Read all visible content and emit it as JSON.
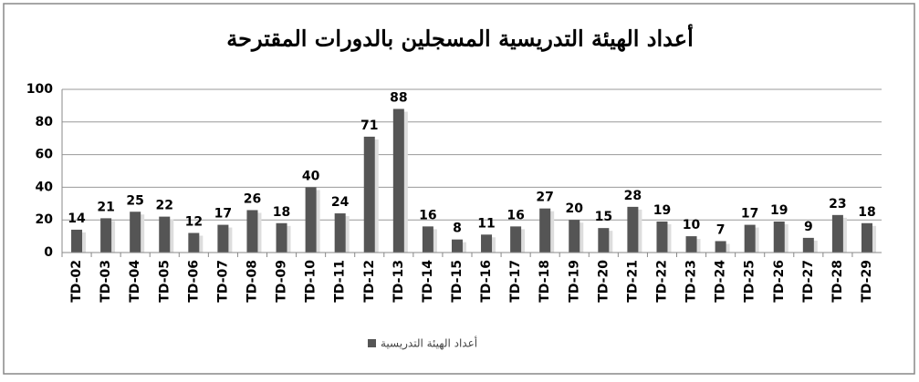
{
  "chart_data": {
    "type": "bar",
    "title": "أعداد الهيئة التدريسية المسجلين بالدورات المقترحة",
    "categories": [
      "TD-02",
      "TD-03",
      "TD-04",
      "TD-05",
      "TD-06",
      "TD-07",
      "TD-08",
      "TD-09",
      "TD-10",
      "TD-11",
      "TD-12",
      "TD-13",
      "TD-14",
      "TD-15",
      "TD-16",
      "TD-17",
      "TD-18",
      "TD-19",
      "TD-20",
      "TD-21",
      "TD-22",
      "TD-23",
      "TD-24",
      "TD-25",
      "TD-26",
      "TD-27",
      "TD-28",
      "TD-29"
    ],
    "series": [
      {
        "name": "أعداد الهيئة التدريسية",
        "color": "#555555",
        "values": [
          14,
          21,
          25,
          22,
          12,
          17,
          26,
          18,
          40,
          24,
          71,
          88,
          16,
          8,
          11,
          16,
          27,
          20,
          15,
          28,
          19,
          10,
          7,
          17,
          19,
          9,
          23,
          18
        ]
      }
    ],
    "ylim": [
      0,
      100
    ],
    "yticks": [
      0,
      20,
      40,
      60,
      80,
      100
    ],
    "grid": true,
    "legend": "bottom"
  }
}
